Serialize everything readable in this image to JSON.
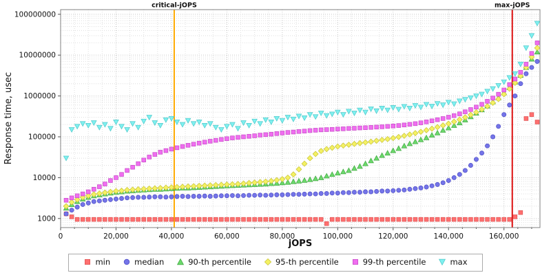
{
  "chart_data": {
    "type": "scatter",
    "title": "",
    "xlabel": "jOPS",
    "ylabel": "Response time, usec",
    "xlim": [
      0,
      173000
    ],
    "ylim": [
      600,
      130000000
    ],
    "y_scale": "log",
    "grid": true,
    "legend_position": "bottom",
    "x_ticks": [
      {
        "v": 0,
        "label": "0"
      },
      {
        "v": 20000,
        "label": "20,000"
      },
      {
        "v": 40000,
        "label": "40,000"
      },
      {
        "v": 60000,
        "label": "60,000"
      },
      {
        "v": 80000,
        "label": "80,000"
      },
      {
        "v": 100000,
        "label": "100,000"
      },
      {
        "v": 120000,
        "label": "120,000"
      },
      {
        "v": 140000,
        "label": "140,000"
      },
      {
        "v": 160000,
        "label": "160,000"
      }
    ],
    "y_ticks": [
      {
        "v": 1000,
        "label": "1000"
      },
      {
        "v": 10000,
        "label": "10000"
      },
      {
        "v": 100000,
        "label": "100000"
      },
      {
        "v": 1000000,
        "label": "1000000"
      },
      {
        "v": 10000000,
        "label": "10000000"
      },
      {
        "v": 100000000,
        "label": "100000000"
      }
    ],
    "vlines": [
      {
        "x": 41000,
        "label": "critical-jOPS",
        "color": "#ffaa00"
      },
      {
        "x": 163000,
        "label": "max-jOPS",
        "color": "#dd1111"
      }
    ],
    "x": [
      2000,
      4000,
      6000,
      8000,
      10000,
      12000,
      14000,
      16000,
      18000,
      20000,
      22000,
      24000,
      26000,
      28000,
      30000,
      32000,
      34000,
      36000,
      38000,
      40000,
      42000,
      44000,
      46000,
      48000,
      50000,
      52000,
      54000,
      56000,
      58000,
      60000,
      62000,
      64000,
      66000,
      68000,
      70000,
      72000,
      74000,
      76000,
      78000,
      80000,
      82000,
      84000,
      86000,
      88000,
      90000,
      92000,
      94000,
      96000,
      98000,
      100000,
      102000,
      104000,
      106000,
      108000,
      110000,
      112000,
      114000,
      116000,
      118000,
      120000,
      122000,
      124000,
      126000,
      128000,
      130000,
      132000,
      134000,
      136000,
      138000,
      140000,
      142000,
      144000,
      146000,
      148000,
      150000,
      152000,
      154000,
      156000,
      158000,
      160000,
      162000,
      164000,
      166000,
      168000,
      170000,
      172000
    ],
    "series": [
      {
        "name": "min",
        "marker": "square",
        "fill": "#ff7070",
        "stroke": "#e05555",
        "values": [
          1300,
          1100,
          950,
          950,
          950,
          950,
          950,
          950,
          950,
          950,
          950,
          950,
          950,
          950,
          950,
          950,
          950,
          950,
          950,
          950,
          950,
          950,
          950,
          950,
          950,
          950,
          950,
          950,
          950,
          950,
          950,
          950,
          950,
          950,
          950,
          950,
          950,
          950,
          950,
          950,
          950,
          950,
          950,
          950,
          950,
          950,
          950,
          750,
          950,
          950,
          950,
          950,
          950,
          950,
          950,
          950,
          950,
          950,
          950,
          950,
          950,
          950,
          950,
          950,
          950,
          950,
          950,
          950,
          950,
          950,
          950,
          950,
          950,
          950,
          950,
          950,
          950,
          950,
          950,
          950,
          950,
          1100,
          1400,
          280000,
          350000,
          230000
        ]
      },
      {
        "name": "median",
        "marker": "circle",
        "fill": "#7474e8",
        "stroke": "#5252c8",
        "values": [
          1300,
          1600,
          1900,
          2200,
          2400,
          2600,
          2700,
          2800,
          2900,
          3000,
          3100,
          3200,
          3250,
          3300,
          3300,
          3350,
          3400,
          3400,
          3350,
          3400,
          3450,
          3500,
          3450,
          3500,
          3500,
          3550,
          3500,
          3550,
          3600,
          3600,
          3650,
          3600,
          3650,
          3700,
          3700,
          3750,
          3700,
          3750,
          3800,
          3800,
          3850,
          3900,
          3900,
          3950,
          4000,
          4000,
          4100,
          4100,
          4200,
          4200,
          4300,
          4300,
          4400,
          4400,
          4500,
          4500,
          4600,
          4700,
          4700,
          4800,
          4900,
          5000,
          5200,
          5400,
          5600,
          5900,
          6300,
          6800,
          7500,
          8500,
          10000,
          12000,
          15000,
          20000,
          28000,
          40000,
          60000,
          100000,
          180000,
          350000,
          600000,
          1000000,
          2000000,
          3500000,
          5000000,
          7000000
        ]
      },
      {
        "name": "90-th percentile",
        "marker": "triangle-up",
        "fill": "#6cd96c",
        "stroke": "#44aa44",
        "values": [
          1800,
          2200,
          2600,
          3000,
          3300,
          3600,
          3800,
          4000,
          4200,
          4400,
          4500,
          4700,
          4800,
          4900,
          5000,
          5100,
          5200,
          5200,
          5300,
          5400,
          5500,
          5600,
          5600,
          5700,
          5800,
          5900,
          6000,
          6100,
          6200,
          6300,
          6400,
          6500,
          6600,
          6700,
          6800,
          6900,
          7000,
          7200,
          7300,
          7500,
          7700,
          8000,
          8300,
          8600,
          9000,
          9500,
          10000,
          11000,
          12000,
          13000,
          14000,
          15000,
          17000,
          19000,
          22000,
          26000,
          30000,
          35000,
          40000,
          46000,
          52000,
          60000,
          68000,
          76000,
          85000,
          95000,
          110000,
          125000,
          145000,
          165000,
          190000,
          220000,
          260000,
          310000,
          380000,
          460000,
          570000,
          720000,
          900000,
          1200000,
          1600000,
          2200000,
          3200000,
          5000000,
          8000000,
          12000000
        ]
      },
      {
        "name": "95-th percentile",
        "marker": "diamond",
        "fill": "#f4f163",
        "stroke": "#c9c53a",
        "values": [
          2000,
          2500,
          2900,
          3300,
          3600,
          3900,
          4100,
          4300,
          4500,
          4700,
          4800,
          5000,
          5100,
          5200,
          5300,
          5400,
          5500,
          5600,
          5700,
          5800,
          5900,
          6000,
          6100,
          6200,
          6300,
          6400,
          6500,
          6600,
          6700,
          6800,
          6900,
          7000,
          7200,
          7400,
          7600,
          7800,
          8000,
          8300,
          8700,
          9200,
          10000,
          12000,
          16000,
          22000,
          30000,
          38000,
          45000,
          50000,
          54000,
          58000,
          61000,
          64000,
          67000,
          70000,
          73000,
          76000,
          80000,
          84000,
          88000,
          93000,
          99000,
          106000,
          114000,
          123000,
          133000,
          145000,
          158000,
          173000,
          190000,
          210000,
          235000,
          265000,
          300000,
          345000,
          400000,
          470000,
          560000,
          680000,
          840000,
          1100000,
          1500000,
          2100000,
          3100000,
          5000000,
          9000000,
          15000000
        ]
      },
      {
        "name": "99-th percentile",
        "marker": "square",
        "fill": "#f06ef0",
        "stroke": "#c94fc9",
        "values": [
          2800,
          3200,
          3600,
          4000,
          4500,
          5200,
          6000,
          7000,
          8500,
          10000,
          12000,
          15000,
          18000,
          22000,
          27000,
          32000,
          37000,
          42000,
          46000,
          50000,
          54000,
          58000,
          62000,
          66000,
          70000,
          74000,
          78000,
          82000,
          86000,
          90000,
          94000,
          97000,
          100000,
          103000,
          106000,
          110000,
          113000,
          116000,
          120000,
          124000,
          128000,
          131000,
          135000,
          138000,
          142000,
          145000,
          148000,
          150000,
          152000,
          155000,
          157000,
          160000,
          162000,
          165000,
          167000,
          170000,
          173000,
          176000,
          180000,
          184000,
          189000,
          195000,
          202000,
          210000,
          220000,
          232000,
          246000,
          262000,
          280000,
          302000,
          330000,
          365000,
          410000,
          465000,
          535000,
          625000,
          740000,
          890000,
          1100000,
          1400000,
          1900000,
          2600000,
          3800000,
          6000000,
          11000000,
          20000000
        ]
      },
      {
        "name": "max",
        "marker": "triangle-down",
        "fill": "#80f0f0",
        "stroke": "#52cccc",
        "values": [
          30000,
          150000,
          180000,
          210000,
          190000,
          220000,
          170000,
          200000,
          160000,
          230000,
          180000,
          150000,
          210000,
          170000,
          240000,
          300000,
          220000,
          190000,
          260000,
          280000,
          230000,
          200000,
          250000,
          210000,
          230000,
          190000,
          210000,
          170000,
          150000,
          180000,
          200000,
          160000,
          220000,
          190000,
          240000,
          210000,
          260000,
          230000,
          280000,
          250000,
          300000,
          270000,
          320000,
          290000,
          350000,
          310000,
          380000,
          330000,
          360000,
          400000,
          350000,
          420000,
          380000,
          450000,
          400000,
          480000,
          430000,
          500000,
          450000,
          520000,
          470000,
          550000,
          500000,
          580000,
          530000,
          620000,
          560000,
          650000,
          600000,
          700000,
          640000,
          750000,
          820000,
          900000,
          1000000,
          1100000,
          1300000,
          1500000,
          1800000,
          2200000,
          2800000,
          3500000,
          6000000,
          15000000,
          30000000,
          60000000
        ]
      }
    ]
  }
}
